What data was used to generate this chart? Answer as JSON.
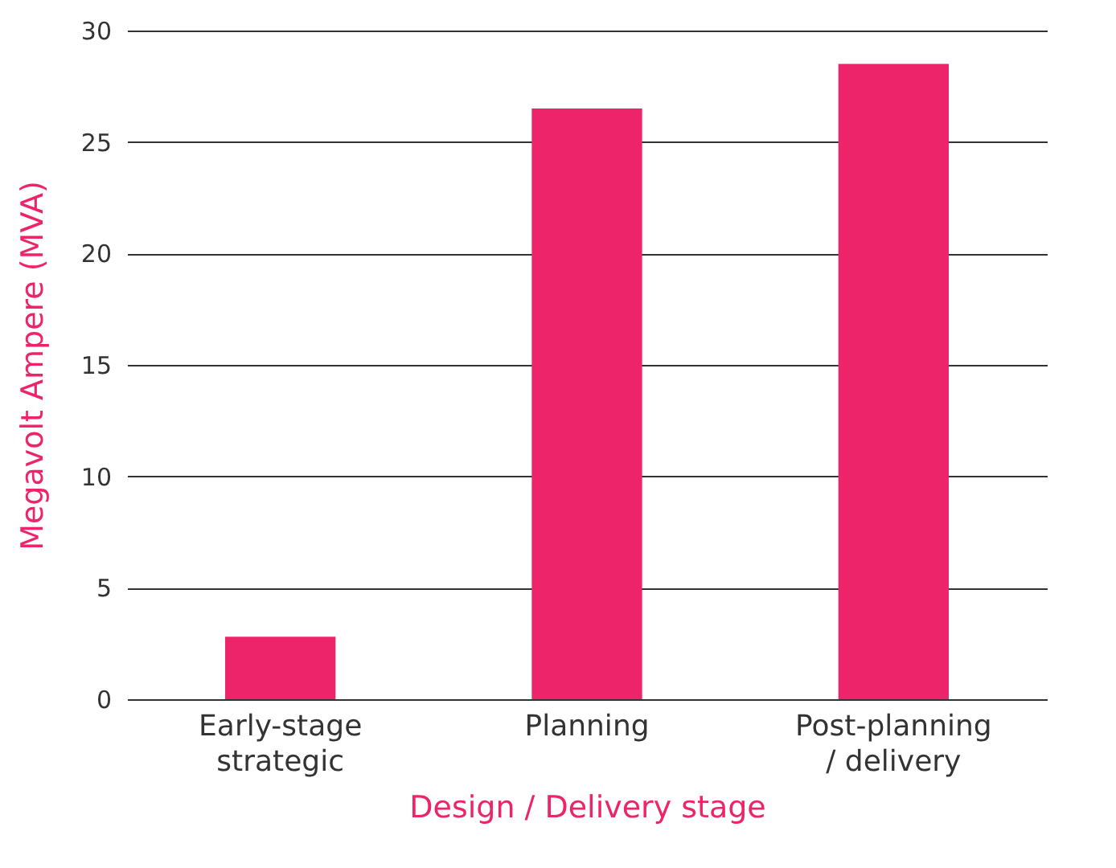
{
  "chart_data": {
    "type": "bar",
    "xlabel": "Design / Delivery stage",
    "ylabel": "Megavolt Ampere (MVA)",
    "categories": [
      "Early-stage strategic",
      "Planning",
      "Post-planning / delivery"
    ],
    "values": [
      2.8,
      26.5,
      28.5
    ],
    "color": "#ee246b",
    "ylim": [
      0,
      30
    ],
    "yticks": [
      0,
      5,
      10,
      15,
      20,
      25,
      30
    ],
    "grid": "y"
  }
}
